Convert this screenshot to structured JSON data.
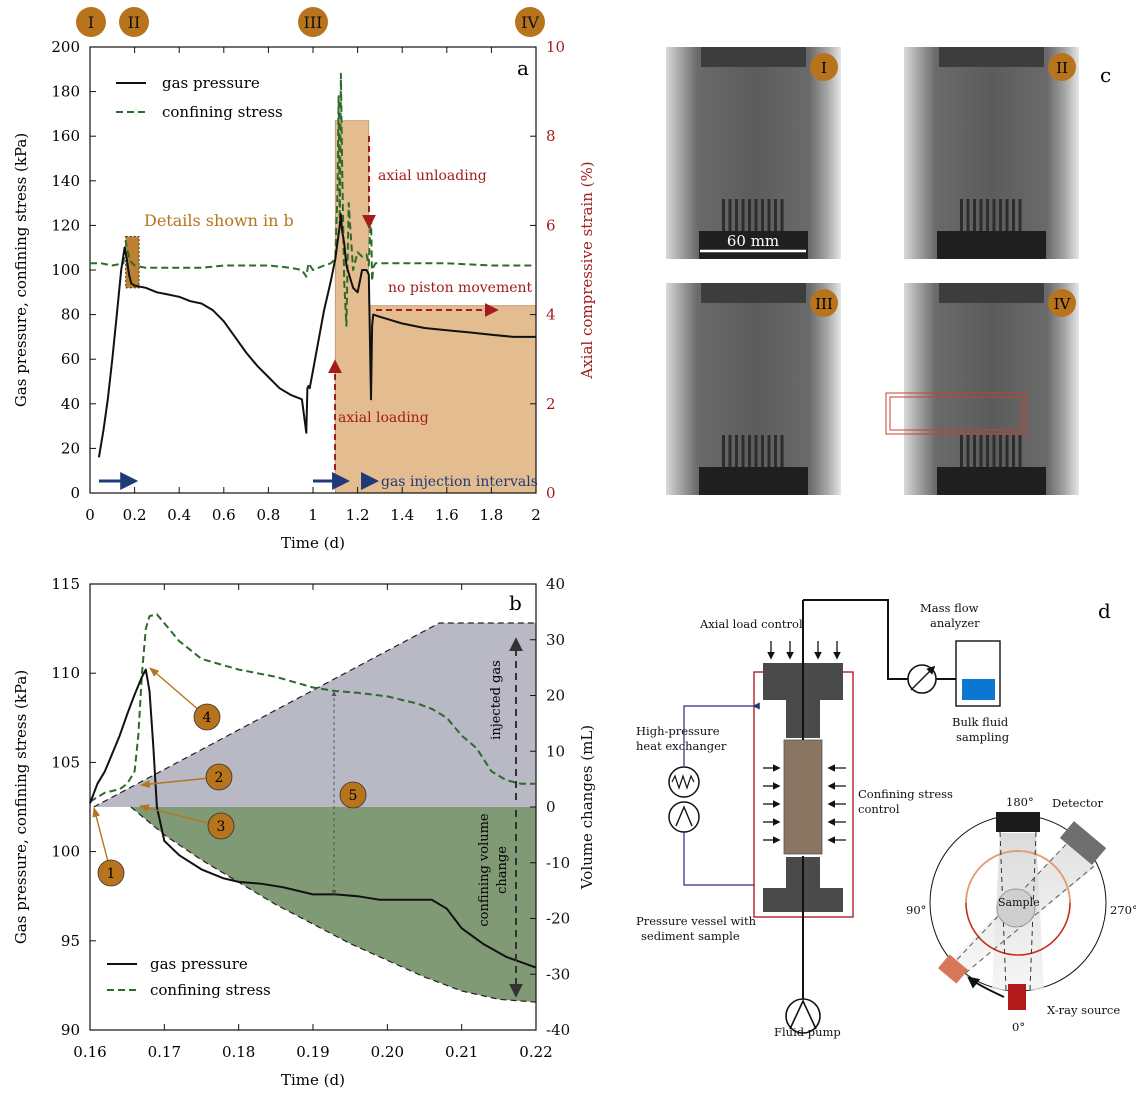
{
  "panels": {
    "a": "a",
    "b": "b",
    "c": "c",
    "d": "d"
  },
  "stage_markers": [
    "I",
    "II",
    "III",
    "IV"
  ],
  "chart_data": [
    {
      "panel": "a",
      "type": "line",
      "xlabel": "Time (d)",
      "ylabel": "Gas pressure, confining stress (kPa)",
      "y2label": "Axial compressive strain (%)",
      "xlim": [
        0,
        2
      ],
      "ylim": [
        0,
        200
      ],
      "y2lim": [
        0,
        10
      ],
      "xticks": [
        "0",
        "0.2",
        "0.4",
        "0.6",
        "0.8",
        "1",
        "1.2",
        "1.4",
        "1.6",
        "1.8",
        "2"
      ],
      "yticks": [
        "0",
        "20",
        "40",
        "60",
        "80",
        "100",
        "120",
        "140",
        "160",
        "180",
        "200"
      ],
      "y2ticks": [
        "0",
        "2",
        "4",
        "6",
        "8",
        "10"
      ],
      "legend_location": "top-left",
      "stage_times": [
        0.0,
        0.2,
        1.0,
        1.95
      ],
      "series": [
        {
          "name": "gas pressure",
          "color": "#111111",
          "style": "solid",
          "x": [
            0.04,
            0.06,
            0.08,
            0.1,
            0.12,
            0.14,
            0.155,
            0.165,
            0.175,
            0.185,
            0.2,
            0.25,
            0.3,
            0.35,
            0.4,
            0.45,
            0.5,
            0.55,
            0.6,
            0.65,
            0.7,
            0.75,
            0.8,
            0.85,
            0.9,
            0.95,
            0.97,
            0.975,
            0.98,
            0.985,
            1.0,
            1.05,
            1.08,
            1.1,
            1.12,
            1.125,
            1.13,
            1.14,
            1.15,
            1.18,
            1.2,
            1.22,
            1.24,
            1.25,
            1.26,
            1.265,
            1.27,
            1.3,
            1.4,
            1.5,
            1.6,
            1.7,
            1.8,
            1.9,
            2.0
          ],
          "y": [
            16,
            28,
            42,
            60,
            80,
            100,
            110,
            105,
            98,
            94,
            93,
            92,
            90,
            89,
            88,
            86,
            85,
            82,
            77,
            70,
            63,
            57,
            52,
            47,
            44,
            42,
            27,
            47,
            48,
            47,
            55,
            82,
            95,
            105,
            120,
            125,
            118,
            112,
            102,
            92,
            90,
            100,
            100,
            98,
            42,
            75,
            80,
            79,
            76,
            74,
            73,
            72,
            71,
            70,
            70
          ]
        },
        {
          "name": "confining stress",
          "color": "#2e6b2a",
          "style": "dashed",
          "x": [
            0.0,
            0.05,
            0.1,
            0.15,
            0.16,
            0.17,
            0.18,
            0.2,
            0.25,
            0.3,
            0.4,
            0.5,
            0.6,
            0.7,
            0.8,
            0.9,
            0.95,
            0.97,
            0.98,
            1.0,
            1.05,
            1.08,
            1.1,
            1.11,
            1.115,
            1.12,
            1.125,
            1.13,
            1.14,
            1.15,
            1.16,
            1.18,
            1.2,
            1.22,
            1.24,
            1.25,
            1.255,
            1.26,
            1.265,
            1.27,
            1.28,
            1.3,
            1.4,
            1.6,
            1.8,
            2.0
          ],
          "y": [
            103,
            103,
            102,
            103,
            113,
            108,
            104,
            102,
            101,
            101,
            101,
            101,
            102,
            102,
            102,
            101,
            100,
            97,
            103,
            100,
            102,
            103,
            105,
            135,
            178,
            120,
            188,
            150,
            95,
            75,
            130,
            100,
            108,
            106,
            107,
            102,
            115,
            125,
            95,
            101,
            103,
            103,
            103,
            103,
            102,
            102
          ]
        },
        {
          "name": "axial compressive strain",
          "axis": "y2",
          "color": "#e2b98a",
          "style": "area",
          "x": [
            1.1,
            1.1,
            1.25,
            1.25,
            2.0
          ],
          "y": [
            0,
            8.35,
            8.35,
            4.2,
            4.2
          ]
        }
      ],
      "highlight_box": {
        "label": "Details shown in b",
        "x": [
          0.16,
          0.22
        ],
        "y": [
          92,
          115
        ]
      },
      "annotations": [
        {
          "text": "axial unloading",
          "color": "#a31c1c"
        },
        {
          "text": "no piston movement",
          "color": "#a31c1c"
        },
        {
          "text": "axial loading",
          "color": "#a31c1c"
        },
        {
          "text": "gas injection intervals",
          "color": "#1f3a78"
        }
      ],
      "injection_intervals": [
        [
          0.04,
          0.2
        ],
        [
          1.0,
          1.15
        ],
        [
          1.22,
          1.28
        ]
      ]
    },
    {
      "panel": "b",
      "type": "line",
      "xlabel": "Time (d)",
      "ylabel": "Gas pressure, confining stress (kPa)",
      "y2label": "Volume changes (mL)",
      "xlim": [
        0.16,
        0.22
      ],
      "ylim": [
        90,
        115
      ],
      "y2lim": [
        -40,
        40
      ],
      "xticks": [
        "0.16",
        "0.17",
        "0.18",
        "0.19",
        "0.20",
        "0.21",
        "0.22"
      ],
      "yticks": [
        "90",
        "95",
        "100",
        "105",
        "110",
        "115"
      ],
      "y2ticks": [
        "-40",
        "-30",
        "-20",
        "-10",
        "0",
        "10",
        "20",
        "30",
        "40"
      ],
      "legend_location": "bottom-left",
      "series": [
        {
          "name": "gas pressure",
          "color": "#111111",
          "style": "solid",
          "x": [
            0.16,
            0.161,
            0.162,
            0.163,
            0.164,
            0.165,
            0.166,
            0.167,
            0.1675,
            0.168,
            0.1685,
            0.169,
            0.17,
            0.172,
            0.175,
            0.178,
            0.18,
            0.183,
            0.186,
            0.19,
            0.193,
            0.196,
            0.199,
            0.2,
            0.202,
            0.204,
            0.206,
            0.208,
            0.21,
            0.213,
            0.216,
            0.218,
            0.22
          ],
          "y": [
            102.7,
            103.8,
            104.5,
            105.5,
            106.5,
            107.7,
            108.8,
            109.8,
            110.2,
            109.0,
            106.0,
            102.5,
            100.6,
            99.8,
            99.0,
            98.5,
            98.3,
            98.2,
            98.0,
            97.6,
            97.6,
            97.5,
            97.3,
            97.3,
            97.3,
            97.3,
            97.3,
            96.8,
            95.7,
            94.8,
            94.1,
            93.8,
            93.5
          ]
        },
        {
          "name": "confining stress",
          "color": "#2e6b2a",
          "style": "dashed",
          "x": [
            0.16,
            0.162,
            0.164,
            0.165,
            0.166,
            0.1665,
            0.167,
            0.1675,
            0.168,
            0.169,
            0.17,
            0.172,
            0.175,
            0.18,
            0.185,
            0.19,
            0.193,
            0.196,
            0.2,
            0.202,
            0.204,
            0.206,
            0.208,
            0.21,
            0.212,
            0.214,
            0.216,
            0.218,
            0.22
          ],
          "y": [
            102.8,
            103.3,
            103.5,
            103.8,
            104.5,
            106.5,
            110.0,
            112.5,
            113.2,
            113.3,
            112.8,
            111.8,
            110.8,
            110.2,
            109.8,
            109.2,
            109.0,
            108.9,
            108.7,
            108.5,
            108.3,
            108.0,
            107.5,
            106.5,
            105.8,
            104.5,
            104.0,
            103.8,
            103.8
          ]
        },
        {
          "name": "injected gas",
          "axis": "y2",
          "color": "#b9b9c6",
          "style": "area",
          "x": [
            0.1605,
            0.207,
            0.22
          ],
          "y": [
            0,
            33,
            33
          ]
        },
        {
          "name": "confining volume change",
          "axis": "y2",
          "color": "#7f9a74",
          "style": "area",
          "x": [
            0.1655,
            0.17,
            0.175,
            0.18,
            0.185,
            0.19,
            0.195,
            0.2,
            0.205,
            0.21,
            0.215,
            0.22
          ],
          "y": [
            0,
            -5,
            -9.5,
            -13.5,
            -17.5,
            -21,
            -24.5,
            -27.5,
            -30.5,
            -33,
            -34.5,
            -35
          ]
        }
      ],
      "numbered_markers": [
        "1",
        "2",
        "3",
        "4",
        "5"
      ],
      "annotations": [
        {
          "text": "injected gas"
        },
        {
          "text": "confining volume change"
        }
      ]
    }
  ],
  "panel_c": {
    "scale_label": "60 mm",
    "frames": [
      "I",
      "II",
      "III",
      "IV"
    ]
  },
  "panel_d": {
    "labels": {
      "axial": "Axial load control",
      "mass1": "Mass flow",
      "mass2": "analyzer",
      "bulk1": "Bulk fluid",
      "bulk2": "sampling",
      "hx1": "High-pressure",
      "hx2": "heat exchanger",
      "conf1": "Confining stress",
      "conf2": "control",
      "vessel1": "Pressure vessel with",
      "vessel2": "sediment sample",
      "pump": "Fluid pump",
      "detector": "Detector",
      "xray": "X-ray source",
      "sample": "Sample",
      "a0": "0°",
      "a90": "90°",
      "a180": "180°",
      "a270": "270°"
    }
  }
}
